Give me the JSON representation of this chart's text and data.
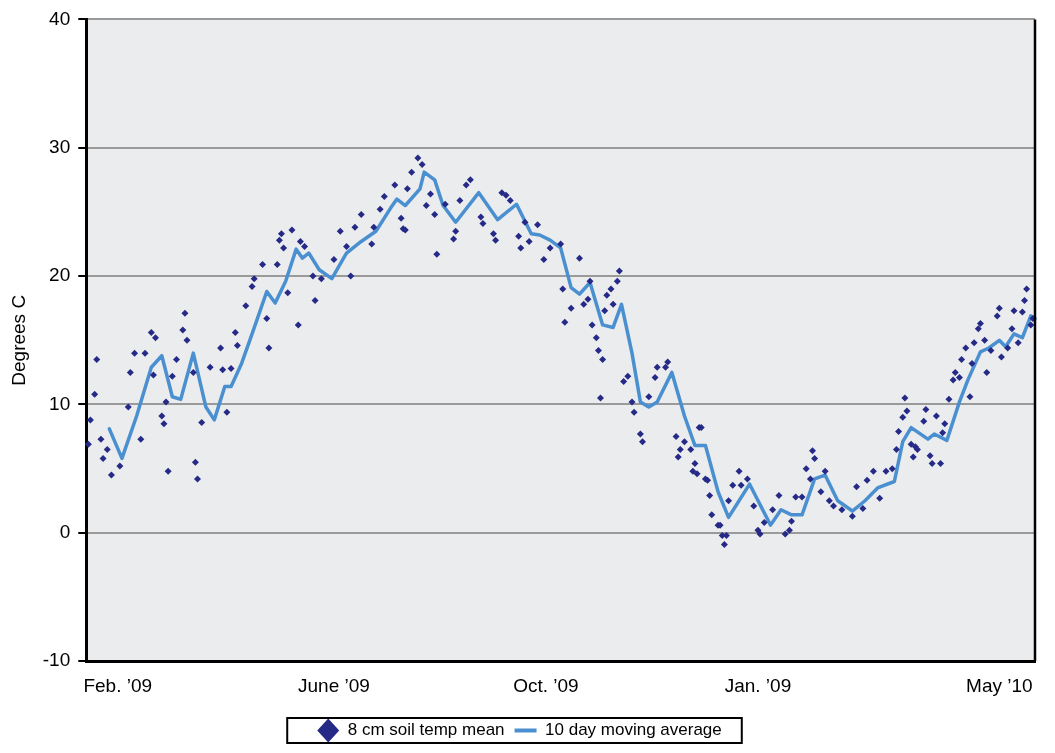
{
  "chart_data": {
    "type": "scatter",
    "ylabel": "Degrees C",
    "ylim": [
      -10,
      40
    ],
    "yticks": [
      -10,
      0,
      10,
      20,
      30,
      40
    ],
    "grid": "y",
    "legend": "bottom",
    "categories": [
      null,
      null,
      null,
      null,
      null,
      null,
      null,
      null,
      null,
      null,
      null,
      null,
      null,
      null,
      null,
      "Feb. ’09",
      null,
      null,
      null,
      null,
      null,
      null,
      null,
      null,
      null,
      null,
      null,
      null,
      null,
      null,
      null,
      null,
      null,
      null,
      null,
      null,
      null,
      null,
      null,
      null,
      null,
      null,
      null,
      null,
      null,
      null,
      null,
      null,
      null,
      null,
      null,
      null,
      null,
      null,
      null,
      null,
      null,
      null,
      null,
      null,
      null,
      null,
      null,
      null,
      null,
      null,
      null,
      null,
      null,
      null,
      null,
      null,
      null,
      null,
      null,
      null,
      null,
      null,
      null,
      null,
      null,
      null,
      null,
      null,
      null,
      null,
      null,
      null,
      null,
      null,
      null,
      null,
      null,
      null,
      null,
      null,
      null,
      null,
      null,
      null,
      null,
      null,
      null,
      null,
      null,
      null,
      null,
      null,
      null,
      null,
      null,
      null,
      null,
      null,
      null,
      null,
      null,
      null,
      "June ’09",
      null,
      null,
      null,
      null,
      null,
      null,
      null,
      null,
      null,
      null,
      null,
      null,
      null,
      null,
      null,
      null,
      null,
      null,
      null,
      null,
      null,
      null,
      null,
      null,
      null,
      null,
      null,
      null,
      null,
      null,
      null,
      null,
      null,
      null,
      null,
      null,
      null,
      null,
      null,
      null,
      null,
      null,
      null,
      null,
      null,
      null,
      null,
      null,
      null,
      null,
      null,
      null,
      null,
      null,
      null,
      null,
      null,
      null,
      null,
      null,
      null,
      null,
      null,
      null,
      null,
      null,
      null,
      null,
      null,
      null,
      null,
      null,
      null,
      null,
      null,
      null,
      null,
      null,
      null,
      null,
      null,
      null,
      null,
      null,
      null,
      null,
      null,
      null,
      null,
      null,
      null,
      null,
      null,
      null,
      null,
      null,
      null,
      null,
      null,
      null,
      "Oct. ’09",
      null,
      null,
      null,
      null,
      null,
      null,
      null,
      null,
      null,
      null,
      null,
      null,
      null,
      null,
      null,
      null,
      null,
      null,
      null,
      null,
      null,
      null,
      null,
      null,
      null,
      null,
      null,
      null,
      null,
      null,
      null,
      null,
      null,
      null,
      null,
      null,
      null,
      null,
      null,
      null,
      null,
      null,
      null,
      null,
      null,
      null,
      null,
      null,
      null,
      null,
      null,
      null,
      null,
      null,
      null,
      null,
      null,
      null,
      null,
      null,
      null,
      null,
      null,
      null,
      null,
      null,
      null,
      null,
      null,
      null,
      null,
      null,
      null,
      null,
      null,
      null,
      null,
      null,
      null,
      null,
      null,
      null,
      null,
      null,
      null,
      null,
      null,
      null,
      null,
      null,
      null,
      null,
      null,
      null,
      null,
      null,
      null,
      null,
      null,
      null,
      "Jan. ’09",
      null,
      null,
      null,
      null,
      null,
      null,
      null,
      null,
      null,
      null,
      null,
      null,
      null,
      null,
      null,
      null,
      null,
      null,
      null,
      null,
      null,
      null,
      null,
      null,
      null,
      null,
      null,
      null,
      null,
      null,
      null,
      null,
      null,
      null,
      null,
      null,
      null,
      null,
      null,
      null,
      null,
      null,
      null,
      null,
      null,
      null,
      null,
      null,
      null,
      null,
      null,
      null,
      null,
      null,
      null,
      null,
      null,
      null,
      null,
      null,
      null,
      null,
      null,
      null,
      null,
      null,
      null,
      null,
      null,
      null,
      null,
      null,
      null,
      null,
      null,
      null,
      null,
      null,
      null,
      null,
      null,
      null,
      null,
      null,
      null,
      null,
      null,
      null,
      null,
      null,
      null,
      null,
      null,
      null,
      null,
      null,
      null,
      null,
      null,
      null,
      null,
      null,
      null,
      null,
      null,
      null,
      null,
      null,
      null,
      null,
      null,
      null,
      null,
      null,
      "May ’10",
      null,
      null,
      null,
      null,
      null,
      null,
      null,
      null,
      null,
      null,
      null,
      null,
      null,
      null,
      null,
      null,
      null
    ],
    "series": [
      {
        "name": "8 cm soil temp mean",
        "type": "scatter",
        "marker": "diamond",
        "color": "#262a87",
        "values": [
          null,
          6.9,
          8.8,
          null,
          10.8,
          13.5,
          null,
          7.3,
          5.8,
          null,
          6.5,
          null,
          4.5,
          null,
          null,
          null,
          5.2,
          null,
          null,
          null,
          9.8,
          12.5,
          null,
          14,
          null,
          null,
          7.3,
          null,
          14,
          null,
          null,
          15.6,
          12.3,
          15.2,
          null,
          null,
          9.1,
          8.5,
          10.2,
          4.8,
          null,
          12.2,
          null,
          13.5,
          null,
          null,
          15.8,
          17.1,
          15,
          null,
          null,
          12.5,
          5.5,
          4.2,
          null,
          8.6,
          null,
          null,
          null,
          12.9,
          null,
          null,
          null,
          null,
          14.4,
          12.7,
          null,
          9.4,
          null,
          12.8,
          null,
          15.6,
          14.6,
          null,
          null,
          null,
          17.7,
          null,
          null,
          19.2,
          19.8,
          null,
          null,
          null,
          20.9,
          null,
          16.7,
          14.4,
          null,
          null,
          null,
          20.9,
          22.8,
          23.3,
          22.2,
          null,
          18.7,
          null,
          23.6,
          null,
          null,
          16.2,
          22.7,
          null,
          22.3,
          null,
          null,
          null,
          20,
          18.1,
          null,
          null,
          19.8,
          null,
          null,
          null,
          null,
          null,
          21.3,
          null,
          null,
          23.5,
          null,
          null,
          22.3,
          null,
          20,
          null,
          23.8,
          null,
          null,
          24.8,
          null,
          null,
          null,
          null,
          22.5,
          23.8,
          null,
          null,
          25.2,
          null,
          26.2,
          null,
          null,
          null,
          null,
          27.1,
          null,
          null,
          24.5,
          23.7,
          23.6,
          26.8,
          null,
          28.1,
          null,
          null,
          29.2,
          null,
          28.7,
          null,
          25.5,
          null,
          26.4,
          null,
          24.8,
          21.7,
          null,
          null,
          null,
          25.6,
          null,
          null,
          null,
          22.9,
          23.5,
          null,
          25.9,
          null,
          null,
          27.1,
          null,
          27.5,
          null,
          null,
          null,
          null,
          24.6,
          24.1,
          null,
          null,
          null,
          null,
          23.3,
          22.8,
          null,
          null,
          26.5,
          null,
          26.3,
          null,
          25.9,
          null,
          null,
          null,
          23.1,
          22.2,
          null,
          24.2,
          null,
          22.7,
          null,
          null,
          null,
          24,
          null,
          null,
          21.3,
          null,
          null,
          22.2,
          null,
          null,
          null,
          null,
          22.5,
          19,
          16.4,
          null,
          null,
          17.5,
          null,
          null,
          null,
          21.4,
          null,
          17.8,
          null,
          18.2,
          19.6,
          16.2,
          null,
          15.2,
          14.2,
          10.5,
          13.5,
          17.3,
          18.5,
          null,
          19,
          17.8,
          null,
          19.6,
          20.4,
          null,
          11.8,
          null,
          12.2,
          null,
          10.2,
          9.4,
          null,
          null,
          7.7,
          7.1,
          null,
          null,
          10.6,
          null,
          null,
          12.1,
          12.9,
          null,
          null,
          null,
          12.9,
          13.3,
          null,
          null,
          null,
          7.5,
          5.9,
          6.5,
          null,
          7.1,
          null,
          null,
          6.5,
          4.8,
          5.4,
          4.6,
          8.2,
          8.2,
          null,
          4.2,
          4.1,
          2.9,
          1.4,
          null,
          null,
          0.6,
          0.6,
          -0.2,
          -0.9,
          -0.2,
          2.5,
          null,
          3.7,
          null,
          null,
          4.8,
          3.7,
          null,
          null,
          4.2,
          null,
          null,
          2.1,
          null,
          0.2,
          -0.1,
          null,
          0.8,
          null,
          null,
          null,
          1.8,
          null,
          null,
          2.9,
          null,
          null,
          -0.1,
          null,
          0.2,
          0.9,
          null,
          2.8,
          null,
          null,
          2.8,
          null,
          5,
          null,
          4.2,
          6.4,
          5.8,
          null,
          null,
          3.2,
          null,
          4.8,
          null,
          2.5,
          null,
          2.1,
          null,
          null,
          null,
          1.8,
          null,
          null,
          null,
          null,
          1.3,
          null,
          3.6,
          null,
          null,
          1.9,
          null,
          4.1,
          null,
          null,
          4.8,
          null,
          null,
          2.7,
          null,
          null,
          4.8,
          null,
          null,
          5,
          null,
          6.5,
          7.9,
          null,
          9,
          10.5,
          9.5,
          null,
          6.9,
          5.9,
          6.7,
          6.5,
          null,
          null,
          8.7,
          9.6,
          null,
          6,
          5.4,
          null,
          9.1,
          null,
          5.4,
          7.8,
          8.5,
          null,
          10.4,
          null,
          11.9,
          12.5,
          null,
          12.1,
          13.5,
          null,
          14.4,
          null,
          10.6,
          13.2,
          14.8,
          null,
          15.9,
          16.3,
          null,
          15,
          12.5,
          null,
          14.2,
          null,
          null,
          16.9,
          17.5,
          13.7,
          null,
          null,
          14.4,
          null,
          15.9,
          17.3,
          null,
          14.8,
          null,
          17.2,
          18.1,
          19,
          null,
          16.2,
          16.7,
          null
        ]
      },
      {
        "name": "10 day moving average",
        "type": "line",
        "marker": "none",
        "line_style": "solid",
        "color": "#4a90d0",
        "values": [
          null,
          null,
          null,
          null,
          null,
          null,
          null,
          null,
          null,
          null,
          null,
          8.1,
          null,
          null,
          null,
          null,
          null,
          5.8,
          null,
          null,
          null,
          null,
          null,
          null,
          9.1,
          null,
          null,
          null,
          null,
          null,
          null,
          12.9,
          null,
          null,
          null,
          null,
          13.8,
          null,
          null,
          null,
          null,
          10.6,
          null,
          null,
          null,
          10.4,
          null,
          null,
          null,
          null,
          null,
          14,
          null,
          null,
          null,
          null,
          null,
          9.8,
          null,
          null,
          null,
          8.8,
          null,
          null,
          null,
          null,
          11.4,
          null,
          null,
          11.4,
          null,
          null,
          null,
          null,
          13.2,
          null,
          null,
          null,
          null,
          15.5,
          null,
          null,
          null,
          null,
          null,
          null,
          18.8,
          null,
          null,
          null,
          17.9,
          null,
          null,
          null,
          null,
          19.6,
          null,
          null,
          null,
          null,
          22.1,
          null,
          null,
          21.4,
          null,
          null,
          21.8,
          null,
          null,
          null,
          null,
          20.5,
          null,
          null,
          null,
          null,
          null,
          19.8,
          null,
          null,
          null,
          null,
          null,
          null,
          21.8,
          null,
          null,
          null,
          null,
          null,
          null,
          22.7,
          null,
          null,
          null,
          null,
          null,
          null,
          23.5,
          null,
          null,
          null,
          null,
          null,
          null,
          25.3,
          null,
          null,
          26,
          null,
          null,
          null,
          25.5,
          null,
          null,
          null,
          null,
          null,
          null,
          26.8,
          null,
          28.1,
          null,
          null,
          null,
          null,
          27.5,
          null,
          null,
          null,
          25.5,
          null,
          null,
          null,
          null,
          null,
          24.2,
          null,
          null,
          null,
          null,
          null,
          null,
          null,
          null,
          null,
          null,
          26.5,
          null,
          null,
          null,
          null,
          null,
          null,
          null,
          null,
          24.4,
          null,
          null,
          null,
          null,
          null,
          null,
          null,
          null,
          25.6,
          null,
          null,
          null,
          null,
          null,
          null,
          23.3,
          null,
          null,
          null,
          23.2,
          null,
          null,
          null,
          null,
          22.8,
          null,
          null,
          null,
          null,
          22.2,
          null,
          null,
          null,
          null,
          19.1,
          null,
          null,
          null,
          18.6,
          null,
          null,
          null,
          null,
          19.5,
          null,
          null,
          null,
          null,
          null,
          16.2,
          null,
          null,
          null,
          null,
          16,
          null,
          null,
          null,
          17.8,
          null,
          null,
          null,
          null,
          14,
          null,
          null,
          null,
          10.2,
          null,
          null,
          null,
          9.8,
          null,
          null,
          null,
          10.2,
          null,
          null,
          null,
          null,
          null,
          null,
          12.5,
          null,
          null,
          null,
          null,
          null,
          9.1,
          null,
          null,
          null,
          null,
          6.8,
          null,
          null,
          null,
          null,
          6.8,
          null,
          null,
          null,
          null,
          null,
          3.2,
          null,
          null,
          null,
          null,
          1.2,
          null,
          null,
          null,
          null,
          null,
          null,
          null,
          null,
          null,
          3.8,
          null,
          null,
          null,
          null,
          null,
          null,
          null,
          null,
          null,
          0.6,
          null,
          null,
          null,
          null,
          1.8,
          null,
          null,
          null,
          null,
          1.4,
          null,
          null,
          null,
          null,
          1.4,
          null,
          null,
          null,
          null,
          null,
          4.2,
          null,
          null,
          null,
          null,
          4.5,
          null,
          null,
          null,
          null,
          null,
          2.5,
          null,
          null,
          null,
          null,
          null,
          null,
          1.7,
          null,
          null,
          null,
          null,
          null,
          2.5,
          null,
          null,
          null,
          null,
          null,
          3.5,
          null,
          null,
          null,
          null,
          null,
          null,
          null,
          4,
          null,
          null,
          null,
          7.1,
          null,
          null,
          null,
          8.2,
          null,
          null,
          null,
          null,
          null,
          null,
          null,
          7.3,
          null,
          null,
          7.7,
          null,
          null,
          null,
          null,
          null,
          7.2,
          null,
          null,
          null,
          null,
          null,
          10.2,
          null,
          null,
          null,
          11.9,
          null,
          null,
          null,
          null,
          null,
          14.1,
          null,
          null,
          null,
          14.4,
          null,
          null,
          null,
          null,
          15,
          null,
          null,
          14.5,
          null,
          null,
          null,
          15.5,
          null,
          null,
          null,
          15.2,
          null,
          null,
          null,
          16.9,
          null,
          16.7
        ]
      }
    ]
  }
}
